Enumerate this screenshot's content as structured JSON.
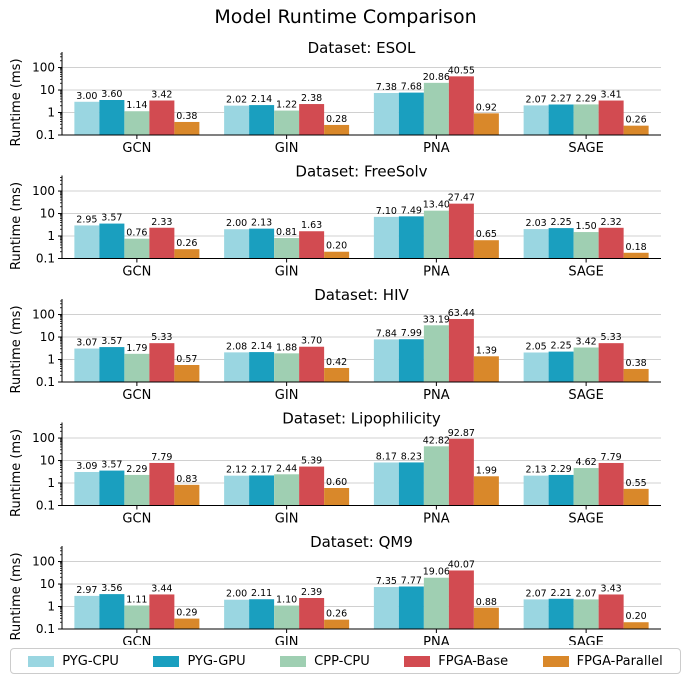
{
  "colors": {
    "PYG-CPU": "#9ad6e1",
    "PYG-GPU": "#1a9fbf",
    "CPP-CPU": "#9fcfb2",
    "FPGA-Base": "#d24b51",
    "FPGA-Parallel": "#d9882a"
  },
  "chart_data": {
    "type": "bar",
    "title": "Model Runtime Comparison",
    "ylabel": "Runtime (ms)",
    "yscale": "log",
    "ylim": [
      0.1,
      400
    ],
    "yticks": [
      "0.1",
      "1",
      "10",
      "100"
    ],
    "grid": "y",
    "legend_position": "bottom",
    "categories": [
      "GCN",
      "GIN",
      "PNA",
      "SAGE"
    ],
    "series_names": [
      "PYG-CPU",
      "PYG-GPU",
      "CPP-CPU",
      "FPGA-Base",
      "FPGA-Parallel"
    ],
    "panels": [
      {
        "title": "Dataset: ESOL",
        "series": [
          {
            "name": "PYG-CPU",
            "values": [
              3.0,
              2.02,
              7.38,
              2.07
            ],
            "labels": [
              "3.00",
              "2.02",
              "7.38",
              "2.07"
            ]
          },
          {
            "name": "PYG-GPU",
            "values": [
              3.6,
              2.14,
              7.68,
              2.27
            ],
            "labels": [
              "3.60",
              "2.14",
              "7.68",
              "2.27"
            ]
          },
          {
            "name": "CPP-CPU",
            "values": [
              1.14,
              1.22,
              20.86,
              2.29
            ],
            "labels": [
              "1.14",
              "1.22",
              "20.86",
              "2.29"
            ]
          },
          {
            "name": "FPGA-Base",
            "values": [
              3.42,
              2.38,
              40.55,
              3.41
            ],
            "labels": [
              "3.42",
              "2.38",
              "40.55",
              "3.41"
            ]
          },
          {
            "name": "FPGA-Parallel",
            "values": [
              0.38,
              0.28,
              0.92,
              0.26
            ],
            "labels": [
              "0.38",
              "0.28",
              "0.92",
              "0.26"
            ]
          }
        ]
      },
      {
        "title": "Dataset: FreeSolv",
        "series": [
          {
            "name": "PYG-CPU",
            "values": [
              2.95,
              2.0,
              7.1,
              2.03
            ],
            "labels": [
              "2.95",
              "2.00",
              "7.10",
              "2.03"
            ]
          },
          {
            "name": "PYG-GPU",
            "values": [
              3.57,
              2.13,
              7.49,
              2.25
            ],
            "labels": [
              "3.57",
              "2.13",
              "7.49",
              "2.25"
            ]
          },
          {
            "name": "CPP-CPU",
            "values": [
              0.76,
              0.81,
              13.4,
              1.5
            ],
            "labels": [
              "0.76",
              "0.81",
              "13.40",
              "1.50"
            ]
          },
          {
            "name": "FPGA-Base",
            "values": [
              2.33,
              1.63,
              27.47,
              2.32
            ],
            "labels": [
              "2.33",
              "1.63",
              "27.47",
              "2.32"
            ]
          },
          {
            "name": "FPGA-Parallel",
            "values": [
              0.26,
              0.2,
              0.65,
              0.18
            ],
            "labels": [
              "0.26",
              "0.20",
              "0.65",
              "0.18"
            ]
          }
        ]
      },
      {
        "title": "Dataset: HIV",
        "series": [
          {
            "name": "PYG-CPU",
            "values": [
              3.07,
              2.08,
              7.84,
              2.05
            ],
            "labels": [
              "3.07",
              "2.08",
              "7.84",
              "2.05"
            ]
          },
          {
            "name": "PYG-GPU",
            "values": [
              3.57,
              2.14,
              7.99,
              2.25
            ],
            "labels": [
              "3.57",
              "2.14",
              "7.99",
              "2.25"
            ]
          },
          {
            "name": "CPP-CPU",
            "values": [
              1.79,
              1.88,
              33.19,
              3.42
            ],
            "labels": [
              "1.79",
              "1.88",
              "33.19",
              "3.42"
            ]
          },
          {
            "name": "FPGA-Base",
            "values": [
              5.33,
              3.7,
              63.44,
              5.33
            ],
            "labels": [
              "5.33",
              "3.70",
              "63.44",
              "5.33"
            ]
          },
          {
            "name": "FPGA-Parallel",
            "values": [
              0.57,
              0.42,
              1.39,
              0.38
            ],
            "labels": [
              "0.57",
              "0.42",
              "1.39",
              "0.38"
            ]
          }
        ]
      },
      {
        "title": "Dataset: Lipophilicity",
        "series": [
          {
            "name": "PYG-CPU",
            "values": [
              3.09,
              2.12,
              8.17,
              2.13
            ],
            "labels": [
              "3.09",
              "2.12",
              "8.17",
              "2.13"
            ]
          },
          {
            "name": "PYG-GPU",
            "values": [
              3.57,
              2.17,
              8.23,
              2.29
            ],
            "labels": [
              "3.57",
              "2.17",
              "8.23",
              "2.29"
            ]
          },
          {
            "name": "CPP-CPU",
            "values": [
              2.29,
              2.44,
              42.82,
              4.62
            ],
            "labels": [
              "2.29",
              "2.44",
              "42.82",
              "4.62"
            ]
          },
          {
            "name": "FPGA-Base",
            "values": [
              7.79,
              5.39,
              92.87,
              7.79
            ],
            "labels": [
              "7.79",
              "5.39",
              "92.87",
              "7.79"
            ]
          },
          {
            "name": "FPGA-Parallel",
            "values": [
              0.83,
              0.6,
              1.99,
              0.55
            ],
            "labels": [
              "0.83",
              "0.60",
              "1.99",
              "0.55"
            ]
          }
        ]
      },
      {
        "title": "Dataset: QM9",
        "series": [
          {
            "name": "PYG-CPU",
            "values": [
              2.97,
              2.0,
              7.35,
              2.07
            ],
            "labels": [
              "2.97",
              "2.00",
              "7.35",
              "2.07"
            ]
          },
          {
            "name": "PYG-GPU",
            "values": [
              3.56,
              2.11,
              7.77,
              2.21
            ],
            "labels": [
              "3.56",
              "2.11",
              "7.77",
              "2.21"
            ]
          },
          {
            "name": "CPP-CPU",
            "values": [
              1.11,
              1.1,
              19.06,
              2.07
            ],
            "labels": [
              "1.11",
              "1.10",
              "19.06",
              "2.07"
            ]
          },
          {
            "name": "FPGA-Base",
            "values": [
              3.44,
              2.39,
              40.07,
              3.43
            ],
            "labels": [
              "3.44",
              "2.39",
              "40.07",
              "3.43"
            ]
          },
          {
            "name": "FPGA-Parallel",
            "values": [
              0.29,
              0.26,
              0.88,
              0.2
            ],
            "labels": [
              "0.29",
              "0.26",
              "0.88",
              "0.20"
            ]
          }
        ]
      }
    ]
  }
}
